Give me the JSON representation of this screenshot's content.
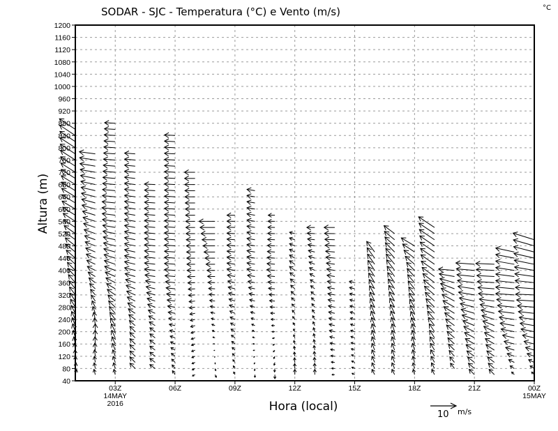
{
  "chart_data": {
    "type": "vector-field",
    "title": "SODAR - SJC - Temperatura (°C) e Vento (m/s)",
    "corner_unit": "°C",
    "xlabel": "Hora (local)",
    "ylabel": "Altura (m)",
    "ylim": [
      40,
      1200
    ],
    "y_ticks": [
      40,
      80,
      120,
      160,
      200,
      240,
      280,
      320,
      360,
      400,
      440,
      480,
      520,
      560,
      600,
      640,
      680,
      720,
      760,
      800,
      840,
      880,
      920,
      960,
      1000,
      1040,
      1080,
      1120,
      1160,
      1200
    ],
    "x_range_hours": [
      1,
      24
    ],
    "x_ticks": [
      {
        "hour": 3,
        "label": "03Z",
        "sub": [
          "14MAY",
          "2016"
        ]
      },
      {
        "hour": 6,
        "label": "06Z",
        "sub": []
      },
      {
        "hour": 9,
        "label": "09Z",
        "sub": []
      },
      {
        "hour": 12,
        "label": "12Z",
        "sub": []
      },
      {
        "hour": 15,
        "label": "15Z",
        "sub": []
      },
      {
        "hour": 18,
        "label": "18Z",
        "sub": []
      },
      {
        "hour": 21,
        "label": "21Z",
        "sub": []
      },
      {
        "hour": 24,
        "label": "00Z",
        "sub": [
          "15MAY"
        ]
      }
    ],
    "grid": true,
    "level_step_m": 20,
    "reference_vector": {
      "speed": 10,
      "label": "10",
      "unit": "m/s"
    },
    "columns": [
      {
        "hour": 1,
        "bottom": 60,
        "top": 860,
        "profile": [
          [
            60,
            0.5,
            2
          ],
          [
            200,
            -1,
            3
          ],
          [
            400,
            -3,
            3
          ],
          [
            600,
            -5,
            3
          ],
          [
            860,
            -6,
            4
          ]
        ]
      },
      {
        "hour": 2,
        "bottom": 60,
        "top": 780,
        "profile": [
          [
            60,
            -0.5,
            2
          ],
          [
            200,
            0,
            3
          ],
          [
            400,
            -3,
            1.5
          ],
          [
            600,
            -5,
            1.5
          ],
          [
            780,
            -6,
            0.8
          ]
        ]
      },
      {
        "hour": 3,
        "bottom": 60,
        "top": 880,
        "profile": [
          [
            60,
            -0.5,
            2
          ],
          [
            200,
            -1.5,
            3
          ],
          [
            400,
            -4,
            1.5
          ],
          [
            600,
            -5,
            0.5
          ],
          [
            880,
            -4,
            0.2
          ]
        ]
      },
      {
        "hour": 4,
        "bottom": 80,
        "top": 780,
        "profile": [
          [
            80,
            -2,
            2
          ],
          [
            200,
            -2,
            2
          ],
          [
            400,
            -4,
            1
          ],
          [
            780,
            -4,
            0.3
          ]
        ]
      },
      {
        "hour": 5,
        "bottom": 80,
        "top": 680,
        "profile": [
          [
            80,
            -2,
            1.5
          ],
          [
            200,
            -2,
            1.5
          ],
          [
            400,
            -4,
            0.5
          ],
          [
            680,
            -4,
            0.2
          ]
        ]
      },
      {
        "hour": 6,
        "bottom": 60,
        "top": 840,
        "profile": [
          [
            60,
            -1,
            1.5
          ],
          [
            200,
            -2,
            0.5
          ],
          [
            400,
            -4,
            0.3
          ],
          [
            840,
            -4,
            0.2
          ]
        ]
      },
      {
        "hour": 7,
        "bottom": 60,
        "top": 720,
        "profile": [
          [
            60,
            -1,
            -0.5
          ],
          [
            200,
            -1.5,
            -0.5
          ],
          [
            400,
            -3,
            0
          ],
          [
            720,
            -4,
            0
          ]
        ]
      },
      {
        "hour": 8,
        "bottom": 60,
        "top": 560,
        "profile": [
          [
            60,
            0.5,
            -1
          ],
          [
            200,
            -1,
            0.5
          ],
          [
            400,
            -3,
            0
          ],
          [
            560,
            -6,
            0
          ]
        ]
      },
      {
        "hour": 9,
        "bottom": 60,
        "top": 580,
        "profile": [
          [
            60,
            -0.5,
            1
          ],
          [
            200,
            -1.5,
            1
          ],
          [
            400,
            -3,
            0.5
          ],
          [
            580,
            -3,
            0
          ]
        ]
      },
      {
        "hour": 10,
        "bottom": 60,
        "top": 660,
        "profile": [
          [
            60,
            0,
            -1
          ],
          [
            200,
            -1,
            0.5
          ],
          [
            400,
            -3,
            0.5
          ],
          [
            660,
            -3,
            0.5
          ]
        ]
      },
      {
        "hour": 11,
        "bottom": 60,
        "top": 580,
        "profile": [
          [
            60,
            0,
            -1.5
          ],
          [
            200,
            -1,
            0
          ],
          [
            400,
            -3,
            0.3
          ],
          [
            580,
            -2.5,
            0
          ]
        ]
      },
      {
        "hour": 12,
        "bottom": 60,
        "top": 520,
        "profile": [
          [
            60,
            0,
            2
          ],
          [
            200,
            -0.5,
            1
          ],
          [
            400,
            -2,
            1.5
          ],
          [
            520,
            -2,
            0.5
          ]
        ]
      },
      {
        "hour": 13,
        "bottom": 60,
        "top": 540,
        "profile": [
          [
            60,
            0,
            2
          ],
          [
            200,
            -0.5,
            1.5
          ],
          [
            400,
            -2,
            1
          ],
          [
            540,
            -3,
            0
          ]
        ]
      },
      {
        "hour": 14,
        "bottom": 60,
        "top": 540,
        "profile": [
          [
            60,
            -1,
            0
          ],
          [
            200,
            -2,
            0.5
          ],
          [
            400,
            -3,
            0.5
          ],
          [
            540,
            -4,
            0
          ]
        ]
      },
      {
        "hour": 15,
        "bottom": 60,
        "top": 360,
        "profile": [
          [
            60,
            -1,
            0.5
          ],
          [
            200,
            -1.5,
            0.5
          ],
          [
            360,
            -2,
            0.5
          ]
        ]
      },
      {
        "hour": 16,
        "bottom": 60,
        "top": 460,
        "profile": [
          [
            60,
            -1,
            2
          ],
          [
            200,
            -1,
            3
          ],
          [
            460,
            -3,
            4
          ]
        ]
      },
      {
        "hour": 17,
        "bottom": 60,
        "top": 520,
        "profile": [
          [
            60,
            -1,
            2
          ],
          [
            200,
            -1,
            3
          ],
          [
            400,
            -3,
            4
          ],
          [
            520,
            -4,
            3
          ]
        ]
      },
      {
        "hour": 18,
        "bottom": 60,
        "top": 480,
        "profile": [
          [
            60,
            -0.5,
            2
          ],
          [
            200,
            -1,
            3
          ],
          [
            400,
            -3,
            3
          ],
          [
            480,
            -5,
            3
          ]
        ]
      },
      {
        "hour": 19,
        "bottom": 60,
        "top": 540,
        "profile": [
          [
            60,
            -1,
            2
          ],
          [
            200,
            -2,
            3
          ],
          [
            400,
            -5,
            3.5
          ],
          [
            540,
            -6,
            4
          ]
        ]
      },
      {
        "hour": 20,
        "bottom": 80,
        "top": 400,
        "profile": [
          [
            80,
            -1.5,
            2
          ],
          [
            200,
            -3,
            2.5
          ],
          [
            320,
            -5,
            2.5
          ],
          [
            400,
            -6,
            0.5
          ]
        ]
      },
      {
        "hour": 21,
        "bottom": 60,
        "top": 420,
        "profile": [
          [
            60,
            -2,
            2
          ],
          [
            200,
            -4,
            2
          ],
          [
            320,
            -6,
            1
          ],
          [
            420,
            -7,
            0.5
          ]
        ]
      },
      {
        "hour": 22,
        "bottom": 60,
        "top": 420,
        "profile": [
          [
            60,
            -2,
            2
          ],
          [
            200,
            -4,
            2
          ],
          [
            320,
            -6,
            0.5
          ],
          [
            420,
            -7,
            0.3
          ]
        ]
      },
      {
        "hour": 23,
        "bottom": 60,
        "top": 460,
        "profile": [
          [
            60,
            -1,
            1
          ],
          [
            200,
            -5,
            1
          ],
          [
            320,
            -7,
            0.5
          ],
          [
            460,
            -7,
            1.5
          ]
        ]
      },
      {
        "hour": 24,
        "bottom": 60,
        "top": 500,
        "profile": [
          [
            60,
            -1,
            1
          ],
          [
            200,
            -5,
            1
          ],
          [
            320,
            -7,
            0.3
          ],
          [
            500,
            -8,
            2.5
          ]
        ]
      }
    ]
  }
}
